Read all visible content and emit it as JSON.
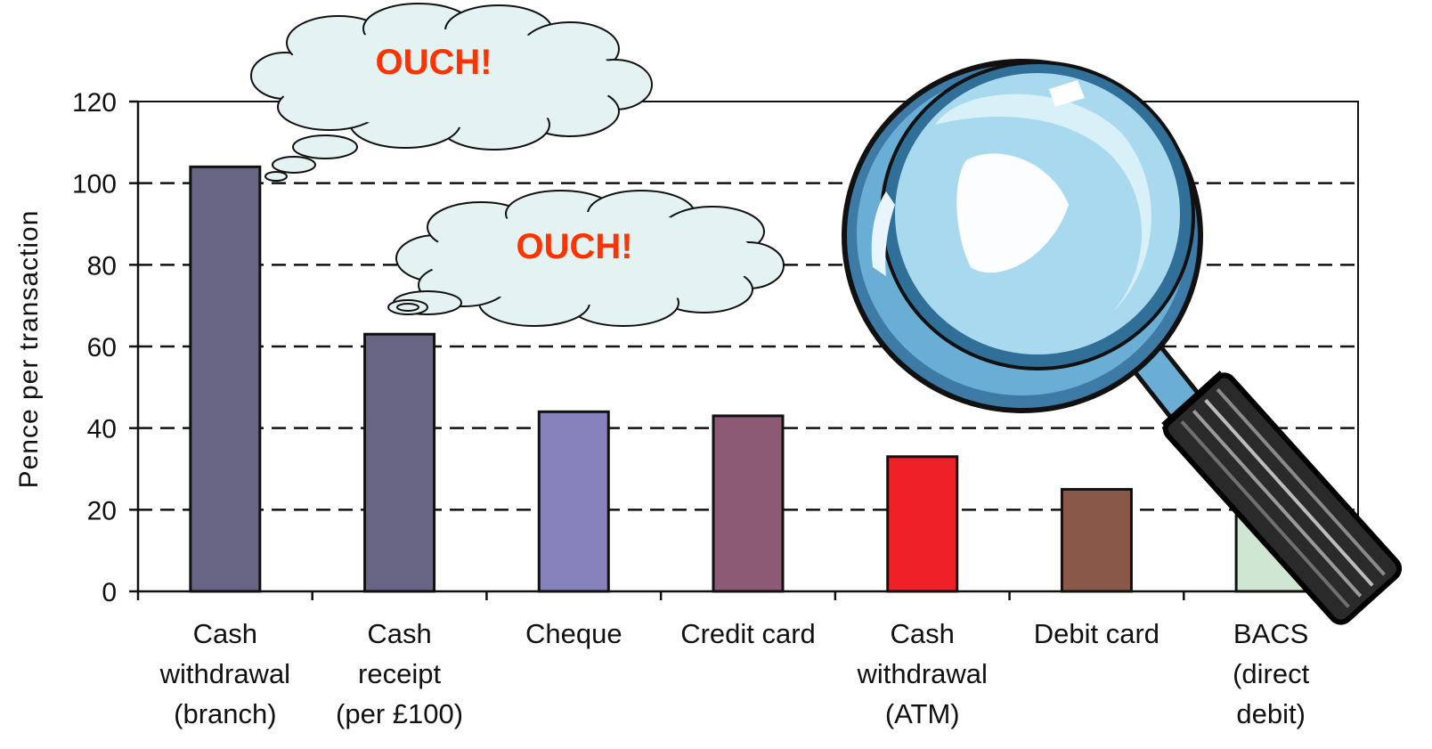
{
  "chart_data": {
    "type": "bar",
    "ylabel": "Pence per transaction",
    "xlabel": "",
    "title": "",
    "ylim": [
      0,
      120
    ],
    "yticks": [
      0,
      20,
      40,
      60,
      80,
      100,
      120
    ],
    "grid": "dashed horizontal",
    "categories": [
      [
        "Cash",
        "withdrawal",
        "(branch)"
      ],
      [
        "Cash",
        "receipt",
        "(per £100)"
      ],
      [
        "Cheque"
      ],
      [
        "Credit card"
      ],
      [
        "Cash",
        "withdrawal",
        "(ATM)"
      ],
      [
        "Debit card"
      ],
      [
        "BACS",
        "(direct",
        "debit)"
      ]
    ],
    "values": [
      104,
      63,
      44,
      43,
      33,
      25,
      20
    ],
    "colors": [
      "#686484",
      "#686484",
      "#8882bc",
      "#8c5a74",
      "#ee2028",
      "#8a5848",
      "#cfe6d2"
    ]
  },
  "annotations": {
    "bubble_1": "OUCH!",
    "bubble_2": "OUCH!"
  },
  "decorations": {
    "magnifier": "magnifying-glass-icon",
    "bubble_fill": "#e4f2f2"
  }
}
